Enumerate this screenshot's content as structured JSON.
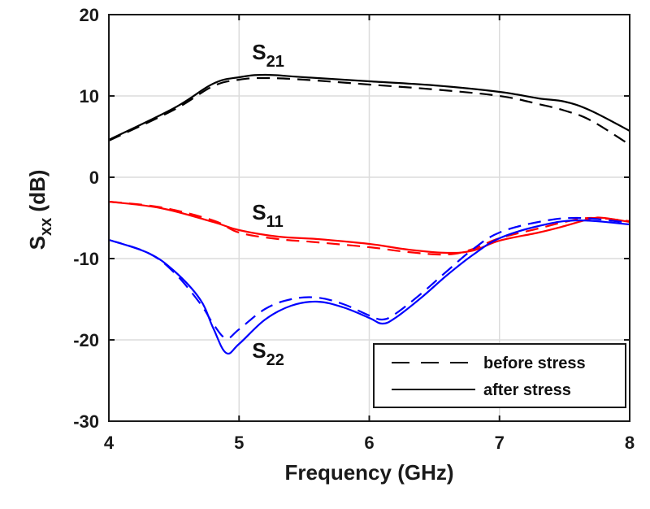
{
  "chart_data": {
    "type": "line",
    "title": "",
    "xlabel": "Frequency (GHz)",
    "ylabel": {
      "main": "S",
      "sub": "xx",
      "unit": " (dB)"
    },
    "xlim": [
      4,
      8
    ],
    "ylim": [
      -30,
      20
    ],
    "xticks": [
      4,
      5,
      6,
      7,
      8
    ],
    "yticks": [
      -30,
      -20,
      -10,
      0,
      10,
      20
    ],
    "xtick_labels": [
      "4",
      "5",
      "6",
      "7",
      "8"
    ],
    "ytick_labels": [
      "-30",
      "-20",
      "-10",
      "0",
      "10",
      "20"
    ],
    "grid": true,
    "legend": {
      "position": "bottom-right",
      "entries": [
        {
          "label": "before stress",
          "style": "dashed",
          "color": "#000000"
        },
        {
          "label": "after stress",
          "style": "solid",
          "color": "#000000"
        }
      ]
    },
    "annotations": [
      {
        "main": "S",
        "sub": "21",
        "x": 5.1,
        "y": 14.5
      },
      {
        "main": "S",
        "sub": "11",
        "x": 5.1,
        "y": -5.2
      },
      {
        "main": "S",
        "sub": "22",
        "x": 5.1,
        "y": -22.2
      }
    ],
    "series": [
      {
        "name": "S21 before stress",
        "color": "#000000",
        "style": "dashed",
        "x": [
          4.0,
          4.5,
          4.8,
          5.0,
          5.2,
          5.5,
          6.0,
          6.5,
          7.0,
          7.3,
          7.5,
          7.7,
          8.0
        ],
        "y": [
          4.5,
          8.3,
          11.2,
          12.0,
          12.2,
          12.0,
          11.4,
          10.8,
          10.0,
          9.0,
          8.2,
          7.0,
          4.0
        ]
      },
      {
        "name": "S21 after stress",
        "color": "#000000",
        "style": "solid",
        "x": [
          4.0,
          4.5,
          4.8,
          5.0,
          5.2,
          5.5,
          6.0,
          6.5,
          7.0,
          7.3,
          7.5,
          7.7,
          8.0
        ],
        "y": [
          4.6,
          8.5,
          11.5,
          12.3,
          12.6,
          12.3,
          11.8,
          11.3,
          10.5,
          9.7,
          9.3,
          8.2,
          5.7
        ]
      },
      {
        "name": "S11 before stress",
        "color": "#ff0000",
        "style": "dashed",
        "x": [
          4.0,
          4.4,
          4.8,
          5.0,
          5.3,
          5.6,
          6.0,
          6.3,
          6.6,
          6.8,
          7.0,
          7.3,
          7.5,
          7.7,
          8.0
        ],
        "y": [
          -3.0,
          -3.7,
          -5.3,
          -6.8,
          -7.6,
          -8.0,
          -8.6,
          -9.2,
          -9.5,
          -8.8,
          -7.5,
          -6.3,
          -5.5,
          -5.0,
          -5.4
        ]
      },
      {
        "name": "S11 after stress",
        "color": "#ff0000",
        "style": "solid",
        "x": [
          4.0,
          4.4,
          4.8,
          5.0,
          5.3,
          5.6,
          6.0,
          6.3,
          6.6,
          6.8,
          7.0,
          7.3,
          7.5,
          7.7,
          7.8,
          8.0
        ],
        "y": [
          -3.0,
          -3.8,
          -5.5,
          -6.5,
          -7.3,
          -7.6,
          -8.2,
          -8.9,
          -9.3,
          -9.0,
          -7.8,
          -6.8,
          -6.0,
          -5.1,
          -5.0,
          -5.5
        ]
      },
      {
        "name": "S22 before stress",
        "color": "#0000ff",
        "style": "dashed",
        "x": [
          4.0,
          4.3,
          4.5,
          4.7,
          4.8,
          4.9,
          5.0,
          5.2,
          5.4,
          5.6,
          5.8,
          6.0,
          6.1,
          6.2,
          6.4,
          6.6,
          6.8,
          7.0,
          7.3,
          7.6,
          8.0
        ],
        "y": [
          -7.7,
          -9.3,
          -11.7,
          -15.5,
          -18.0,
          -19.8,
          -18.7,
          -16.2,
          -15.0,
          -14.8,
          -15.6,
          -17.0,
          -17.5,
          -16.8,
          -14.3,
          -11.5,
          -8.8,
          -6.8,
          -5.5,
          -5.0,
          -5.6
        ]
      },
      {
        "name": "S22 after stress",
        "color": "#0000ff",
        "style": "solid",
        "x": [
          4.0,
          4.3,
          4.5,
          4.7,
          4.8,
          4.9,
          5.0,
          5.2,
          5.4,
          5.6,
          5.8,
          6.0,
          6.1,
          6.2,
          6.4,
          6.6,
          6.8,
          7.0,
          7.3,
          7.6,
          8.0
        ],
        "y": [
          -7.7,
          -9.3,
          -11.5,
          -15.0,
          -18.5,
          -21.6,
          -20.5,
          -17.5,
          -15.8,
          -15.3,
          -16.0,
          -17.3,
          -18.0,
          -17.3,
          -14.8,
          -12.0,
          -9.5,
          -7.5,
          -6.0,
          -5.3,
          -5.8
        ]
      }
    ]
  }
}
